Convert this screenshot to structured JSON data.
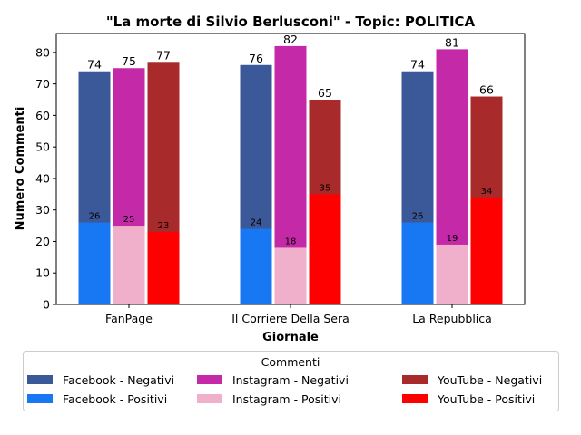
{
  "chart_data": {
    "type": "bar",
    "stacked_overlay": true,
    "title": "\"La morte di Silvio Berlusconi\" - Topic: POLITICA",
    "xlabel": "Giornale",
    "ylabel": "Numero Commenti",
    "ylim": [
      0,
      86
    ],
    "yticks": [
      0,
      10,
      20,
      30,
      40,
      50,
      60,
      70,
      80
    ],
    "grid": false,
    "legend_title": "Commenti",
    "legend_placement": "bottom-center",
    "categories": [
      "FanPage",
      "Il Corriere Della Sera",
      "La Repubblica"
    ],
    "platforms": [
      {
        "name": "Facebook",
        "negativi_label": "Facebook - Negativi",
        "positivi_label": "Facebook - Positivi",
        "color_negativi": "#3b5998",
        "color_positivi": "#1877f2",
        "totals": [
          74,
          76,
          74
        ],
        "positivi": [
          26,
          24,
          26
        ]
      },
      {
        "name": "Instagram",
        "negativi_label": "Instagram - Negativi",
        "positivi_label": "Instagram - Positivi",
        "color_negativi": "#c42aa8",
        "color_positivi": "#f0afca",
        "totals": [
          75,
          82,
          81
        ],
        "positivi": [
          25,
          18,
          19
        ]
      },
      {
        "name": "YouTube",
        "negativi_label": "YouTube - Negativi",
        "positivi_label": "YouTube - Positivi",
        "color_negativi": "#a82a2a",
        "color_positivi": "#ff0000",
        "totals": [
          77,
          65,
          66
        ],
        "positivi": [
          23,
          35,
          34
        ]
      }
    ]
  }
}
